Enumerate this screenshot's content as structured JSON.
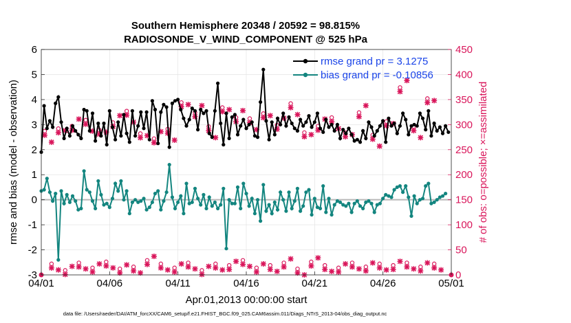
{
  "chart_data": {
    "type": "line",
    "title": "Southern Hemisphere 20348 / 20592 = 98.815%",
    "subtitle": "RADIOSONDE_V_WIND_COMPONENT @ 525 hPa",
    "xlabel": "Apr.01,2013 00:00:00 start",
    "ylabel": "rmse and bias (model - observation)",
    "ylabel_right": "# of obs: o=possible; ×=assimilated",
    "footer": "data file: /Users/raeder/DAI/ATM_forcXX/CAM6_setup/f.e21.FHIST_BGC.f09_025.CAM6assim.011/Diags_NTrS_2013-04/obs_diag_output.nc",
    "xlim": [
      0,
      30
    ],
    "ylim": [
      -3,
      6
    ],
    "ylim_right": [
      0,
      450
    ],
    "x_ticks": [
      0,
      5,
      10,
      15,
      20,
      25,
      30
    ],
    "x_tick_labels": [
      "04/01",
      "04/06",
      "04/11",
      "04/16",
      "04/21",
      "04/26",
      "05/01"
    ],
    "y_ticks": [
      -3,
      -2,
      -1,
      0,
      1,
      2,
      3,
      4,
      5,
      6
    ],
    "y_ticks_right": [
      0,
      50,
      100,
      150,
      200,
      250,
      300,
      350,
      400,
      450
    ],
    "colors": {
      "rmse": "#000000",
      "bias": "#13857f",
      "obs": "#d9155a",
      "zero": "#b8b8b8",
      "legend_text": "#1a44e8"
    },
    "series": [
      {
        "name": "rmse grand pr = 3.1275",
        "key": "rmse",
        "values": [
          1.9,
          3.75,
          2.85,
          3.15,
          2.9,
          3.85,
          4.1,
          3.1,
          2.45,
          2.85,
          2.55,
          2.95,
          2.75,
          2.6,
          2.45,
          3.6,
          3.55,
          2.75,
          3.45,
          2.35,
          3.05,
          2.55,
          3.05,
          2.2,
          3.55,
          2.9,
          2.4,
          3.1,
          2.55,
          3.4,
          2.65,
          2.3,
          3.55,
          2.55,
          2.95,
          3.5,
          2.85,
          3.5,
          2.4,
          3.95,
          3.6,
          2.25,
          3.5,
          3.8,
          3.7,
          2.1,
          3.85,
          3.95,
          4.0,
          3.6,
          3.25,
          2.95,
          3.2,
          3.65,
          3.55,
          2.8,
          3.6,
          3.45,
          3.55,
          2.65,
          2.5,
          3.55,
          4.65,
          3.05,
          2.2,
          3.45,
          2.45,
          3.3,
          3.4,
          2.6,
          2.95,
          3.2,
          2.85,
          3.0,
          3.1,
          2.55,
          2.5,
          3.9,
          5.2,
          3.15,
          2.4,
          3.1,
          2.6,
          3.25,
          3.0,
          3.45,
          2.95,
          3.3,
          3.05,
          2.85,
          2.75,
          3.2,
          2.95,
          3.1,
          3.35,
          2.9,
          3.1,
          3.45,
          2.85,
          2.7,
          3.2,
          2.9,
          3.0,
          2.75,
          3.0,
          2.45,
          2.8,
          2.65,
          2.85,
          2.6,
          2.35,
          2.4,
          2.3,
          2.75,
          2.45,
          3.1,
          2.9,
          2.55,
          2.75,
          2.95,
          3.15,
          2.3,
          3.25,
          2.95,
          3.05,
          2.65,
          2.95,
          3.45,
          3.2,
          2.6,
          2.95,
          3.0,
          2.95,
          3.45,
          3.25,
          2.8,
          3.55,
          2.55,
          3.05,
          2.75,
          2.9,
          2.65,
          2.95,
          2.7
        ],
        "x_step": 0.2083
      },
      {
        "name": "bias grand pr = -0.10856",
        "key": "bias",
        "values": [
          0.35,
          0.4,
          0.85,
          0.3,
          -0.05,
          0.25,
          -2.4,
          0.35,
          -0.15,
          0.2,
          -0.1,
          0.15,
          -0.05,
          -0.4,
          -0.35,
          1.15,
          0.4,
          0.3,
          -0.05,
          -0.35,
          0.75,
          0.2,
          -0.2,
          -0.15,
          -0.3,
          0.05,
          0.65,
          0.35,
          0.75,
          0.0,
          0.35,
          -0.55,
          -0.1,
          0.0,
          -0.1,
          -0.05,
          0.05,
          -0.4,
          -0.3,
          -0.1,
          0.25,
          0.35,
          -0.4,
          -0.05,
          0.3,
          1.4,
          0.1,
          -0.35,
          -0.1,
          0.15,
          -0.55,
          0.65,
          -0.15,
          -0.1,
          0.45,
          0.05,
          -0.2,
          0.2,
          -0.35,
          0.1,
          -0.25,
          -0.1,
          -0.35,
          -0.2,
          0.45,
          -1.95,
          0.0,
          -0.15,
          -0.15,
          0.5,
          -0.35,
          0.65,
          0.25,
          -0.25,
          0.05,
          -0.55,
          0.0,
          -0.85,
          0.6,
          -0.45,
          -0.2,
          -0.55,
          -0.1,
          -0.4,
          0.3,
          0.0,
          -0.45,
          0.3,
          -0.35,
          -0.05,
          0.45,
          -0.45,
          -0.25,
          0.3,
          0.4,
          -0.6,
          0.05,
          -0.3,
          -0.35,
          0.55,
          -0.5,
          0.05,
          -0.6,
          -0.2,
          -0.05,
          -0.1,
          -0.2,
          -0.25,
          -0.15,
          -0.5,
          -0.15,
          -0.05,
          -0.25,
          -0.35,
          -0.1,
          -0.05,
          -0.15,
          -0.5,
          -0.2,
          -0.15,
          0.05,
          0.2,
          0.15,
          0.1,
          0.4,
          0.5,
          0.55,
          0.3,
          0.55,
          0.1,
          -0.65,
          0.15,
          -0.15,
          0.0,
          0.05,
          0.55,
          0.65,
          -0.15,
          -0.1,
          0.0,
          0.1,
          0.15,
          0.25
        ],
        "x_step": 0.2083
      },
      {
        "name": "obs possible (00Z cluster)",
        "key": "obs_high",
        "values": [
          283,
          288,
          293,
          305,
          285,
          300,
          323,
          278,
          268,
          287,
          340,
          320,
          292,
          330,
          310,
          308,
          318,
          295,
          338,
          280,
          293,
          310,
          280,
          320,
          275,
          302,
          370,
          292,
          348
        ],
        "x_offset": 0.0,
        "x_step": 1.0
      },
      {
        "name": "obs possible (12Z cluster)",
        "key": "obs_low",
        "values": [
          18,
          5,
          20,
          10,
          22,
          8,
          12,
          25,
          18,
          10,
          20,
          5,
          18,
          15,
          25,
          10,
          15,
          20,
          8,
          22,
          15,
          10,
          20,
          12,
          18,
          15,
          20,
          12,
          18
        ],
        "x_offset": 0.5,
        "x_step": 1.0
      }
    ],
    "legend": [
      {
        "label": "rmse grand pr = 3.1275",
        "series": "rmse"
      },
      {
        "label": "bias grand pr = -0.10856",
        "series": "bias"
      }
    ],
    "legend_position": "top-right"
  }
}
